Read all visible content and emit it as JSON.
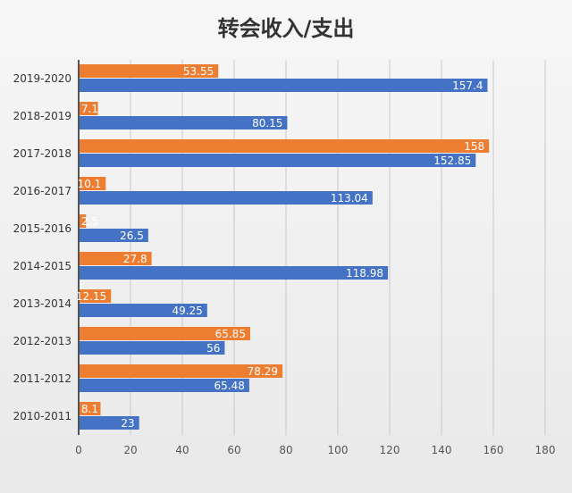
{
  "chart_data": {
    "type": "bar",
    "orientation": "horizontal",
    "title": "转会收入/支出",
    "categories": [
      "2010-2011",
      "2011-2012",
      "2012-2013",
      "2013-2014",
      "2014-2015",
      "2015-2016",
      "2016-2017",
      "2017-2018",
      "2018-2019",
      "2019-2020"
    ],
    "series": [
      {
        "name": "orange",
        "color": "#ed7d31",
        "values": [
          8.1,
          78.29,
          65.85,
          12.15,
          27.8,
          2.5,
          10.1,
          158,
          7.1,
          53.55
        ]
      },
      {
        "name": "blue",
        "color": "#4472c4",
        "values": [
          23,
          65.48,
          56,
          49.25,
          118.98,
          26.5,
          113.04,
          152.85,
          80.15,
          157.4
        ]
      }
    ],
    "xlim": [
      0,
      180
    ],
    "xticks": [
      0,
      20,
      40,
      60,
      80,
      100,
      120,
      140,
      160,
      180
    ],
    "grid": true,
    "legend": "none"
  }
}
